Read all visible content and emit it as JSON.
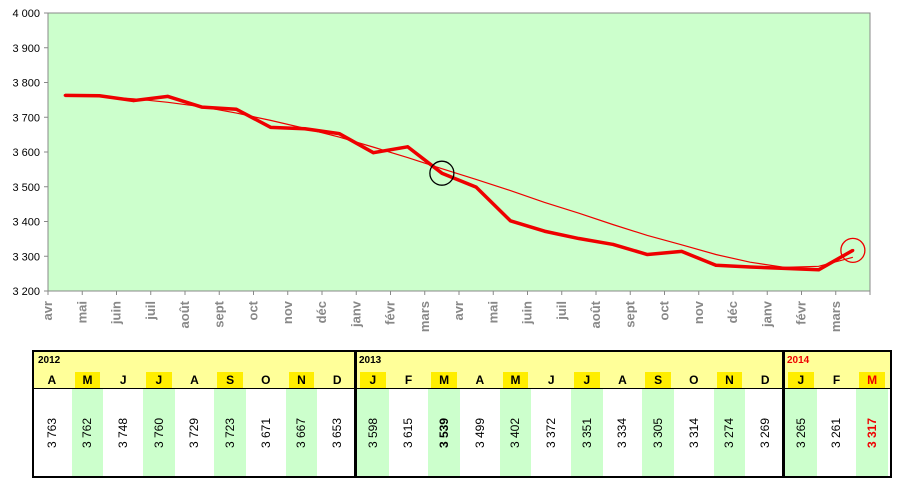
{
  "chart_data": {
    "type": "line",
    "ylim": [
      3200,
      4000
    ],
    "y_ticks": [
      "3 200",
      "3 300",
      "3 400",
      "3 500",
      "3 600",
      "3 700",
      "3 800",
      "3 900",
      "4 000"
    ],
    "x_labels": [
      "avr",
      "mai",
      "juin",
      "juil",
      "août",
      "sept",
      "oct",
      "nov",
      "déc",
      "janv",
      "févr",
      "mars",
      "avr",
      "mai",
      "juin",
      "juil",
      "août",
      "sept",
      "oct",
      "nov",
      "déc",
      "janv",
      "févr",
      "mars"
    ],
    "series": [
      {
        "values": [
          3763,
          3762,
          3748,
          3760,
          3729,
          3723,
          3671,
          3667,
          3653,
          3598,
          3615,
          3539,
          3499,
          3402,
          3372,
          3351,
          3334,
          3305,
          3314,
          3274,
          3269,
          3265,
          3261,
          3317
        ],
        "color": "#ee0000"
      }
    ],
    "trend": [
      3763,
      3760,
      3753,
      3743,
      3730,
      3712,
      3691,
      3668,
      3643,
      3614,
      3584,
      3552,
      3521,
      3489,
      3455,
      3424,
      3391,
      3360,
      3333,
      3305,
      3283,
      3268,
      3271,
      3297
    ],
    "grid": false,
    "plot_bg": "#ccffcc",
    "highlight_circles": [
      {
        "index": 11,
        "color": "#000000"
      },
      {
        "index": 23,
        "color": "#ee0000"
      }
    ]
  },
  "table": {
    "years": [
      {
        "label": "2012",
        "color": "#000000"
      },
      {
        "label": "2013",
        "color": "#000000"
      },
      {
        "label": "2014",
        "color": "#ee0000"
      }
    ],
    "months": [
      "A",
      "M",
      "J",
      "J",
      "A",
      "S",
      "O",
      "N",
      "D",
      "J",
      "F",
      "M",
      "A",
      "M",
      "J",
      "J",
      "A",
      "S",
      "O",
      "N",
      "D",
      "J",
      "F",
      "M"
    ],
    "values": [
      "3 763",
      "3 762",
      "3 748",
      "3 760",
      "3 729",
      "3 723",
      "3 671",
      "3 667",
      "3 653",
      "3 598",
      "3 615",
      "3 539",
      "3 499",
      "3 402",
      "3 372",
      "3 351",
      "3 334",
      "3 305",
      "3 314",
      "3 274",
      "3 269",
      "3 265",
      "3 261",
      "3 317"
    ],
    "bold_index": [
      11,
      23
    ],
    "last_color": "#ee0000",
    "highlight_bg": "#ccffcc",
    "header_bg": "#ffff99"
  }
}
